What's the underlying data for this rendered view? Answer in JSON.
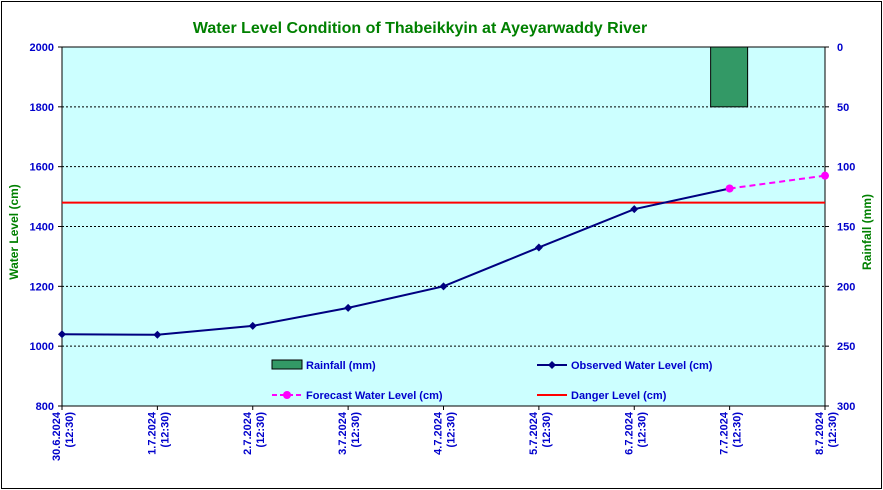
{
  "chart_data": {
    "type": "line",
    "title": "Water Level Condition of Thabeikkyin at Ayeyarwaddy River",
    "ylabel_left": "Water Level (cm)",
    "ylabel_right": "Rainfall (mm)",
    "ylim_left": [
      800,
      2000
    ],
    "yticks_left": [
      "800",
      "1000",
      "1200",
      "1400",
      "1600",
      "1800",
      "2000"
    ],
    "ylim_right": [
      300,
      0
    ],
    "yticks_right": [
      "0",
      "50",
      "100",
      "150",
      "200",
      "250",
      "300"
    ],
    "x_dates": [
      "30.6.2024",
      "1.7.2024",
      "2.7.2024",
      "3.7.2024",
      "4.7.2024",
      "5.7.2024",
      "6.7.2024",
      "7.7.2024",
      "8.7.2024"
    ],
    "x_times": [
      "(12:30)",
      "(12:30)",
      "(12:30)",
      "(12:30)",
      "(12:30)",
      "(12:30)",
      "(12:30)",
      "(12:30)",
      "(12:30)"
    ],
    "grid": true,
    "series": [
      {
        "name": "Rainfall (mm)",
        "kind": "bar",
        "axis": "right",
        "values": [
          0,
          0,
          0,
          0,
          0,
          0,
          0,
          50,
          0
        ],
        "color": "#339966"
      },
      {
        "name": "Observed Water Level (cm)",
        "kind": "line",
        "axis": "left",
        "values": [
          1040,
          1038,
          1068,
          1128,
          1200,
          1330,
          1458,
          1527
        ],
        "color": "#000080"
      },
      {
        "name": "Forecast Water Level (cm)",
        "kind": "line-dashed",
        "axis": "left",
        "values": [
          null,
          null,
          null,
          null,
          null,
          null,
          null,
          1527,
          1570
        ],
        "color": "#ff00ff"
      },
      {
        "name": "Danger Level (cm)",
        "kind": "hline",
        "axis": "left",
        "value": 1480,
        "color": "#ff0000"
      }
    ],
    "legend": [
      {
        "label": "Rainfall (mm)",
        "marker": "bar"
      },
      {
        "label": "Observed Water Level (cm)",
        "marker": "observed"
      },
      {
        "label": "Forecast Water Level (cm)",
        "marker": "forecast"
      },
      {
        "label": "Danger Level (cm)",
        "marker": "danger"
      }
    ],
    "colors": {
      "plot_bg": "#ccffff",
      "title": "#008000",
      "axis_text": "#0000cc",
      "axis_title": "#008000"
    }
  }
}
